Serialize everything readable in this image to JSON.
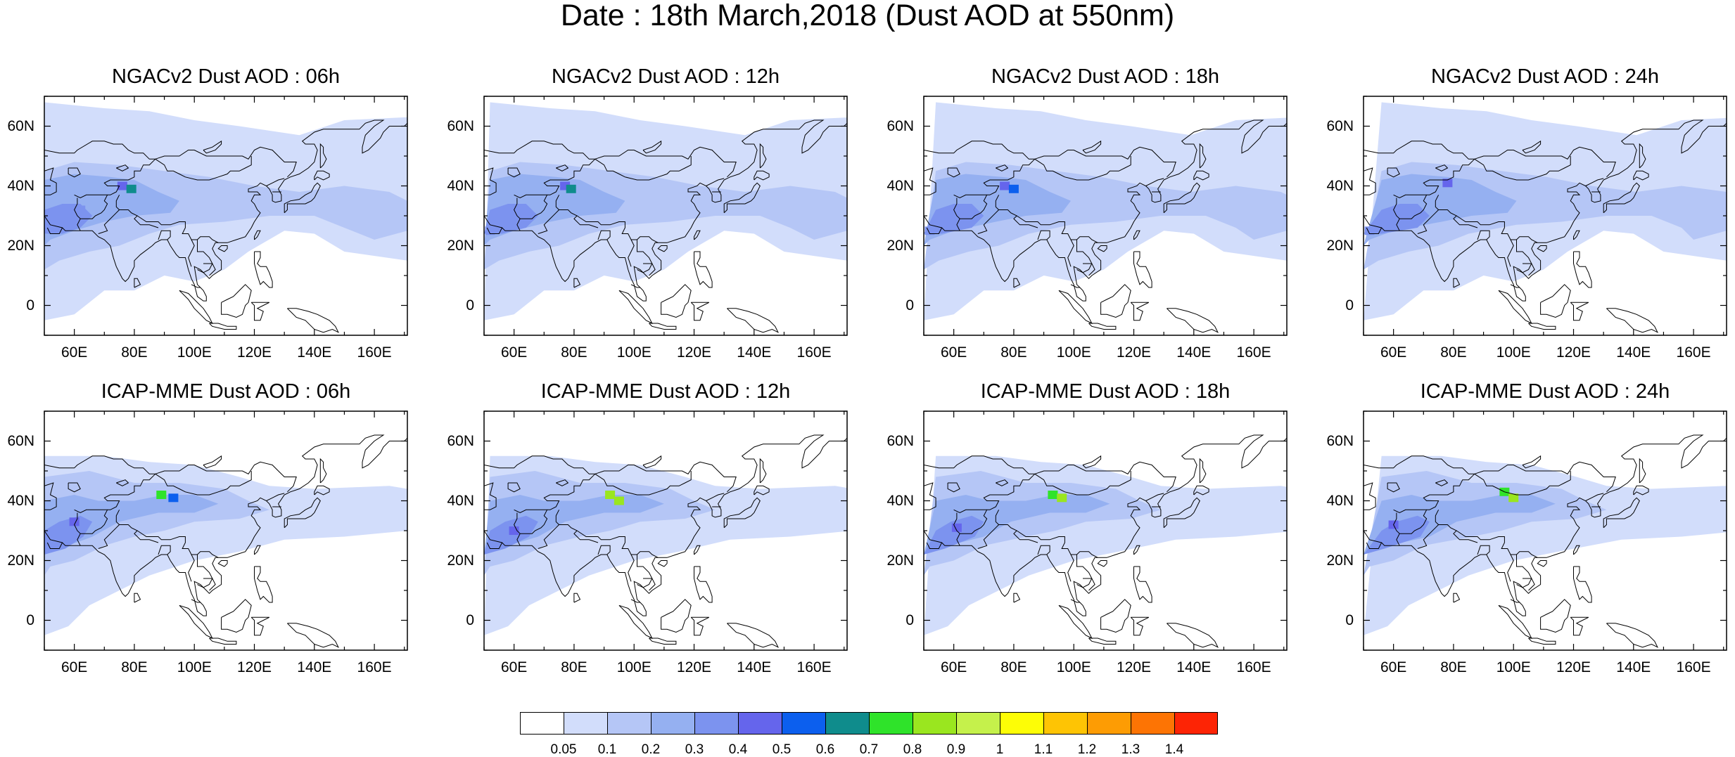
{
  "title": "Date : 18th March,2018 (Dust AOD at 550nm)",
  "panels": [
    {
      "title": "NGACv2 Dust AOD : 06h",
      "hotspots": [
        {
          "lon": 76,
          "lat": 40,
          "v": 0.4
        },
        {
          "lon": 79,
          "lat": 39,
          "v": 0.6
        },
        {
          "lon": 62,
          "lat": 32,
          "v": 0.3
        }
      ]
    },
    {
      "title": "NGACv2 Dust AOD : 12h",
      "hotspots": [
        {
          "lon": 77,
          "lat": 40,
          "v": 0.4
        },
        {
          "lon": 79,
          "lat": 39,
          "v": 0.6
        },
        {
          "lon": 52,
          "lat": 25,
          "v": 0.3
        }
      ]
    },
    {
      "title": "NGACv2 Dust AOD : 18h",
      "hotspots": [
        {
          "lon": 77,
          "lat": 40,
          "v": 0.4
        },
        {
          "lon": 80,
          "lat": 39,
          "v": 0.5
        },
        {
          "lon": 52,
          "lat": 25,
          "v": 0.3
        }
      ]
    },
    {
      "title": "NGACv2 Dust AOD : 24h",
      "hotspots": [
        {
          "lon": 78,
          "lat": 41,
          "v": 0.4
        },
        {
          "lon": 52,
          "lat": 25,
          "v": 0.3
        }
      ]
    },
    {
      "title": "ICAP-MME Dust AOD : 06h",
      "hotspots": [
        {
          "lon": 89,
          "lat": 42,
          "v": 0.7
        },
        {
          "lon": 93,
          "lat": 41,
          "v": 0.5
        },
        {
          "lon": 60,
          "lat": 33,
          "v": 0.4
        }
      ]
    },
    {
      "title": "ICAP-MME Dust AOD : 12h",
      "hotspots": [
        {
          "lon": 92,
          "lat": 42,
          "v": 0.8
        },
        {
          "lon": 95,
          "lat": 40,
          "v": 0.8
        },
        {
          "lon": 60,
          "lat": 30,
          "v": 0.4
        }
      ]
    },
    {
      "title": "ICAP-MME Dust AOD : 18h",
      "hotspots": [
        {
          "lon": 93,
          "lat": 42,
          "v": 0.7
        },
        {
          "lon": 96,
          "lat": 41,
          "v": 0.8
        },
        {
          "lon": 61,
          "lat": 31,
          "v": 0.4
        }
      ]
    },
    {
      "title": "ICAP-MME Dust AOD : 24h",
      "hotspots": [
        {
          "lon": 97,
          "lat": 43,
          "v": 0.7
        },
        {
          "lon": 100,
          "lat": 41,
          "v": 0.8
        },
        {
          "lon": 60,
          "lat": 32,
          "v": 0.4
        }
      ]
    }
  ],
  "axes": {
    "lat_labels": [
      "60N",
      "40N",
      "20N",
      "0"
    ],
    "lat_values": [
      60,
      40,
      20,
      0
    ],
    "lon_labels": [
      "60E",
      "80E",
      "100E",
      "120E",
      "140E",
      "160E"
    ],
    "lon_values": [
      60,
      80,
      100,
      120,
      140,
      160
    ],
    "lon_range": [
      50,
      171
    ],
    "lat_range": [
      -10,
      70
    ]
  },
  "colorbar": {
    "labels": [
      "0.05",
      "0.1",
      "0.2",
      "0.3",
      "0.4",
      "0.5",
      "0.6",
      "0.7",
      "0.8",
      "0.9",
      "1",
      "1.1",
      "1.2",
      "1.3",
      "1.4"
    ],
    "colors": [
      "#ffffff",
      "#d2ddfb",
      "#b5c6f6",
      "#95b0f1",
      "#7c93ef",
      "#6565ec",
      "#0c5fee",
      "#0f8c8c",
      "#2fe32a",
      "#9ae61f",
      "#c5f14b",
      "#fdfd06",
      "#fec404",
      "#fd9c04",
      "#fd7404",
      "#fd2405"
    ]
  }
}
